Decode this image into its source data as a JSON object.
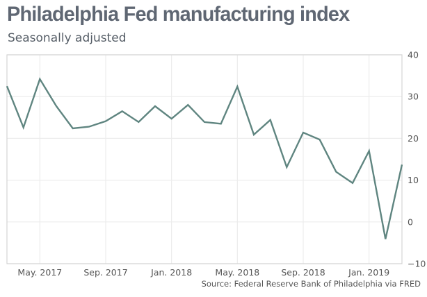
{
  "header": {
    "title": "Philadelphia Fed manufacturing index",
    "subtitle": "Seasonally adjusted"
  },
  "footer": {
    "source": "Source: Federal Reserve Bank of Philadelphia via FRED"
  },
  "colors": {
    "line": "#5f8580",
    "grid": "#ececec",
    "border": "#d4d4d4"
  },
  "chart_data": {
    "type": "line",
    "title": "Philadelphia Fed manufacturing index",
    "subtitle": "Seasonally adjusted",
    "xlabel": "",
    "ylabel": "",
    "ylim": [
      -10,
      40
    ],
    "yticks": [
      40,
      30,
      20,
      10,
      0,
      -10
    ],
    "y_axis_side": "right",
    "grid": true,
    "legend": "none",
    "xtick_labels": [
      {
        "index": 2,
        "label": "May. 2017"
      },
      {
        "index": 6,
        "label": "Sep. 2017"
      },
      {
        "index": 10,
        "label": "Jan. 2018"
      },
      {
        "index": 14,
        "label": "May. 2018"
      },
      {
        "index": 18,
        "label": "Sep. 2018"
      },
      {
        "index": 22,
        "label": "Jan. 2019"
      }
    ],
    "x": [
      "Mar. 2017",
      "Apr. 2017",
      "May. 2017",
      "Jun. 2017",
      "Jul. 2017",
      "Aug. 2017",
      "Sep. 2017",
      "Oct. 2017",
      "Nov. 2017",
      "Dec. 2017",
      "Jan. 2018",
      "Feb. 2018",
      "Mar. 2018",
      "Apr. 2018",
      "May. 2018",
      "Jun. 2018",
      "Jul. 2018",
      "Aug. 2018",
      "Sep. 2018",
      "Oct. 2018",
      "Nov. 2018",
      "Dec. 2018",
      "Jan. 2019",
      "Feb. 2019",
      "Mar. 2019"
    ],
    "series": [
      {
        "name": "Philadelphia Fed manufacturing index",
        "values": [
          32.5,
          22.6,
          34.2,
          27.7,
          22.4,
          22.8,
          24.1,
          26.5,
          23.9,
          27.7,
          24.7,
          28.0,
          23.9,
          23.5,
          32.4,
          20.9,
          24.4,
          13.1,
          21.4,
          19.7,
          12.0,
          9.3,
          17.0,
          -4.1,
          13.7
        ]
      }
    ]
  }
}
